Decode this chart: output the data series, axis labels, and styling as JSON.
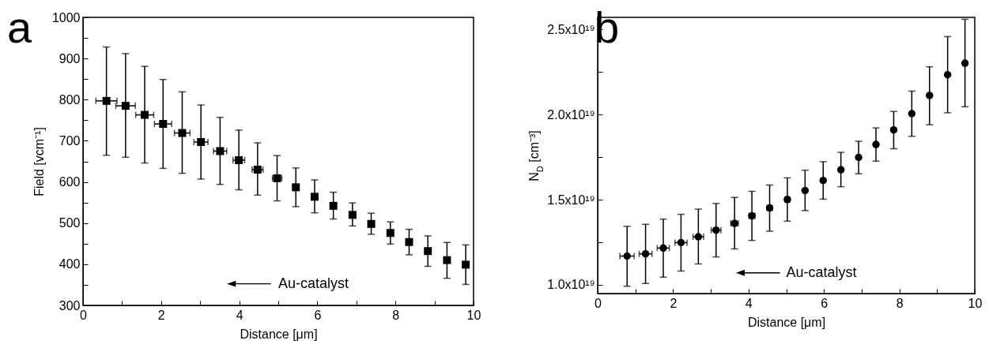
{
  "chart_data": [
    {
      "type": "scatter",
      "title": "a",
      "xlabel": "Distance [μm]",
      "ylabel": "Field [vcm⁻¹]",
      "marker": "square",
      "xlim": [
        0,
        10
      ],
      "xticks": [
        0,
        {
          "value": 1,
          "label": null
        },
        2,
        {
          "value": 3,
          "label": null
        },
        4,
        {
          "value": 5,
          "label": null
        },
        6,
        {
          "value": 7,
          "label": null
        },
        8,
        {
          "value": 9,
          "label": null
        },
        10
      ],
      "ylim": [
        300,
        1000
      ],
      "yticks": [
        300,
        {
          "value": 350,
          "label": null
        },
        400,
        {
          "value": 450,
          "label": null
        },
        500,
        {
          "value": 550,
          "label": null
        },
        600,
        {
          "value": 650,
          "label": null
        },
        700,
        {
          "value": 750,
          "label": null
        },
        800,
        {
          "value": 850,
          "label": null
        },
        900,
        {
          "value": 950,
          "label": null
        },
        1000
      ],
      "annotations": [
        "Au-catalyst"
      ],
      "series": [
        {
          "color": "#000000",
          "x": [
            0.6,
            1.09,
            1.58,
            2.05,
            2.54,
            3.02,
            3.51,
            3.99,
            4.47,
            4.97,
            5.45,
            5.93,
            6.41,
            6.9,
            7.38,
            7.87,
            8.35,
            8.83,
            9.32,
            9.8
          ],
          "values": [
            797,
            785,
            763,
            741,
            719,
            697,
            675,
            653,
            630,
            609,
            587,
            564,
            542,
            520,
            498,
            476,
            454,
            432,
            410,
            399
          ],
          "errors": [
            [
              665,
              928
            ],
            [
              660,
              912
            ],
            [
              646,
              881
            ],
            [
              633,
              849
            ],
            [
              621,
              819
            ],
            [
              607,
              787
            ],
            [
              594,
              757
            ],
            [
              581,
              726
            ],
            [
              568,
              695
            ],
            [
              554,
              664
            ],
            [
              540,
              634
            ],
            [
              525,
              605
            ],
            [
              510,
              575
            ],
            [
              493,
              549
            ],
            [
              473,
              524
            ],
            [
              449,
              503
            ],
            [
              423,
              485
            ],
            [
              395,
              469
            ],
            [
              366,
              453
            ],
            [
              351,
              447
            ]
          ],
          "xerrors": [
            0.27,
            0.25,
            0.23,
            0.22,
            0.2,
            0.18,
            0.17,
            0.15,
            0.14,
            0.12,
            null,
            null,
            null,
            null,
            null,
            null,
            null,
            null,
            null,
            null
          ]
        }
      ]
    },
    {
      "type": "scatter",
      "title": "b",
      "xlabel": "Distance [μm]",
      "ylabel": "N$_{D}$ [cm⁻³]",
      "marker": "circle",
      "xlim": [
        0,
        10
      ],
      "xticks": [
        0,
        {
          "value": 1,
          "label": null
        },
        2,
        {
          "value": 3,
          "label": null
        },
        4,
        {
          "value": 5,
          "label": null
        },
        6,
        {
          "value": 7,
          "label": null
        },
        8,
        {
          "value": 9,
          "label": null
        },
        10
      ],
      "ylim": [
        9.49e+18,
        2.57e+19
      ],
      "yticks": [
        {
          "value": 1e+19,
          "label": "1.0x10¹⁹"
        },
        {
          "value": 1.25e+19,
          "label": null
        },
        {
          "value": 1.5e+19,
          "label": "1.5x10¹⁹"
        },
        {
          "value": 1.75e+19,
          "label": null
        },
        {
          "value": 2e+19,
          "label": "2.0x10¹⁹"
        },
        {
          "value": 2.25e+19,
          "label": null
        },
        {
          "value": 2.5e+19,
          "label": "2.5x10¹⁹"
        }
      ],
      "annotations": [
        "Au-catalyst"
      ],
      "series": [
        {
          "color": "#000000",
          "x": [
            0.78,
            1.27,
            1.74,
            2.21,
            2.67,
            3.14,
            3.63,
            4.09,
            4.56,
            5.03,
            5.5,
            5.98,
            6.45,
            6.92,
            7.38,
            7.85,
            8.33,
            8.8,
            9.28,
            9.74
          ],
          "values": [
            1.169e+19,
            1.182e+19,
            1.216e+19,
            1.248e+19,
            1.282e+19,
            1.321e+19,
            1.361e+19,
            1.405e+19,
            1.451e+19,
            1.501e+19,
            1.554e+19,
            1.613e+19,
            1.676e+19,
            1.748e+19,
            1.824e+19,
            1.909e+19,
            2.005e+19,
            2.112e+19,
            2.233e+19,
            2.301e+19
          ],
          "errors": [
            [
              9.92e+18,
              1.344e+19
            ],
            [
              1.008e+19,
              1.355e+19
            ],
            [
              1.045e+19,
              1.386e+19
            ],
            [
              1.081e+19,
              1.414e+19
            ],
            [
              1.123e+19,
              1.445e+19
            ],
            [
              1.164e+19,
              1.478e+19
            ],
            [
              1.211e+19,
              1.513e+19
            ],
            [
              1.261e+19,
              1.549e+19
            ],
            [
              1.315e+19,
              1.586e+19
            ],
            [
              1.374e+19,
              1.628e+19
            ],
            [
              1.436e+19,
              1.673e+19
            ],
            [
              1.503e+19,
              1.723e+19
            ],
            [
              1.576e+19,
              1.778e+19
            ],
            [
              1.652e+19,
              1.843e+19
            ],
            [
              1.726e+19,
              1.921e+19
            ],
            [
              1.799e+19,
              2.018e+19
            ],
            [
              1.872e+19,
              2.137e+19
            ],
            [
              1.94e+19,
              2.28e+19
            ],
            [
              2.01e+19,
              2.457e+19
            ],
            [
              2.045e+19,
              2.559e+19
            ]
          ],
          "xerrors": [
            0.19,
            0.17,
            0.16,
            0.16,
            0.14,
            0.13,
            0.1,
            0.08,
            0.07,
            0.06,
            null,
            null,
            null,
            null,
            null,
            null,
            null,
            null,
            null,
            null
          ]
        }
      ]
    }
  ]
}
